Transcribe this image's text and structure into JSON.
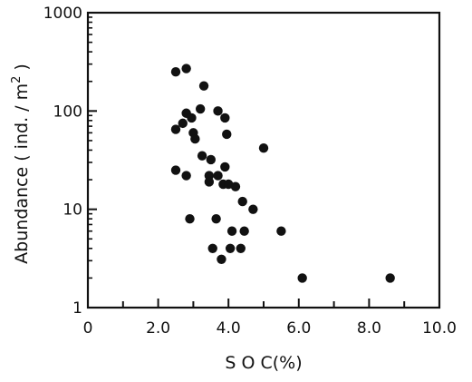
{
  "chart_data": {
    "type": "scatter",
    "title": "",
    "xlabel": "S O C(%)",
    "ylabel_main": "Abundance ( ind. / m",
    "ylabel_sup": "2",
    "ylabel_close": " )",
    "xlim": [
      0,
      10
    ],
    "ylim": [
      1,
      1000
    ],
    "yscale": "log",
    "grid": false,
    "x_ticks": [
      0,
      2,
      4,
      6,
      8,
      10
    ],
    "x_tick_labels": [
      "0",
      "2.0",
      "4.0",
      "6.0",
      "8.0",
      "10.0"
    ],
    "y_ticks": [
      1,
      10,
      100,
      1000
    ],
    "y_tick_labels": [
      "1",
      "10",
      "100",
      "1000"
    ],
    "points": [
      {
        "x": 2.5,
        "y": 250
      },
      {
        "x": 2.8,
        "y": 270
      },
      {
        "x": 3.3,
        "y": 180
      },
      {
        "x": 3.2,
        "y": 105
      },
      {
        "x": 3.7,
        "y": 100
      },
      {
        "x": 2.8,
        "y": 95
      },
      {
        "x": 2.95,
        "y": 85
      },
      {
        "x": 3.9,
        "y": 85
      },
      {
        "x": 2.7,
        "y": 75
      },
      {
        "x": 2.5,
        "y": 65
      },
      {
        "x": 3.0,
        "y": 60
      },
      {
        "x": 3.95,
        "y": 58
      },
      {
        "x": 3.05,
        "y": 52
      },
      {
        "x": 5.0,
        "y": 42
      },
      {
        "x": 3.25,
        "y": 35
      },
      {
        "x": 3.5,
        "y": 32
      },
      {
        "x": 3.9,
        "y": 27
      },
      {
        "x": 2.5,
        "y": 25
      },
      {
        "x": 2.8,
        "y": 22
      },
      {
        "x": 3.45,
        "y": 22
      },
      {
        "x": 3.7,
        "y": 22
      },
      {
        "x": 3.45,
        "y": 19
      },
      {
        "x": 3.85,
        "y": 18
      },
      {
        "x": 4.0,
        "y": 18
      },
      {
        "x": 4.2,
        "y": 17
      },
      {
        "x": 4.4,
        "y": 12
      },
      {
        "x": 4.7,
        "y": 10
      },
      {
        "x": 2.9,
        "y": 8
      },
      {
        "x": 3.65,
        "y": 8
      },
      {
        "x": 4.1,
        "y": 6
      },
      {
        "x": 4.45,
        "y": 6
      },
      {
        "x": 5.5,
        "y": 6
      },
      {
        "x": 3.55,
        "y": 4
      },
      {
        "x": 4.05,
        "y": 4
      },
      {
        "x": 4.35,
        "y": 4
      },
      {
        "x": 3.8,
        "y": 3.1
      },
      {
        "x": 6.1,
        "y": 2
      },
      {
        "x": 8.6,
        "y": 2
      }
    ],
    "marker_color": "#111111"
  }
}
